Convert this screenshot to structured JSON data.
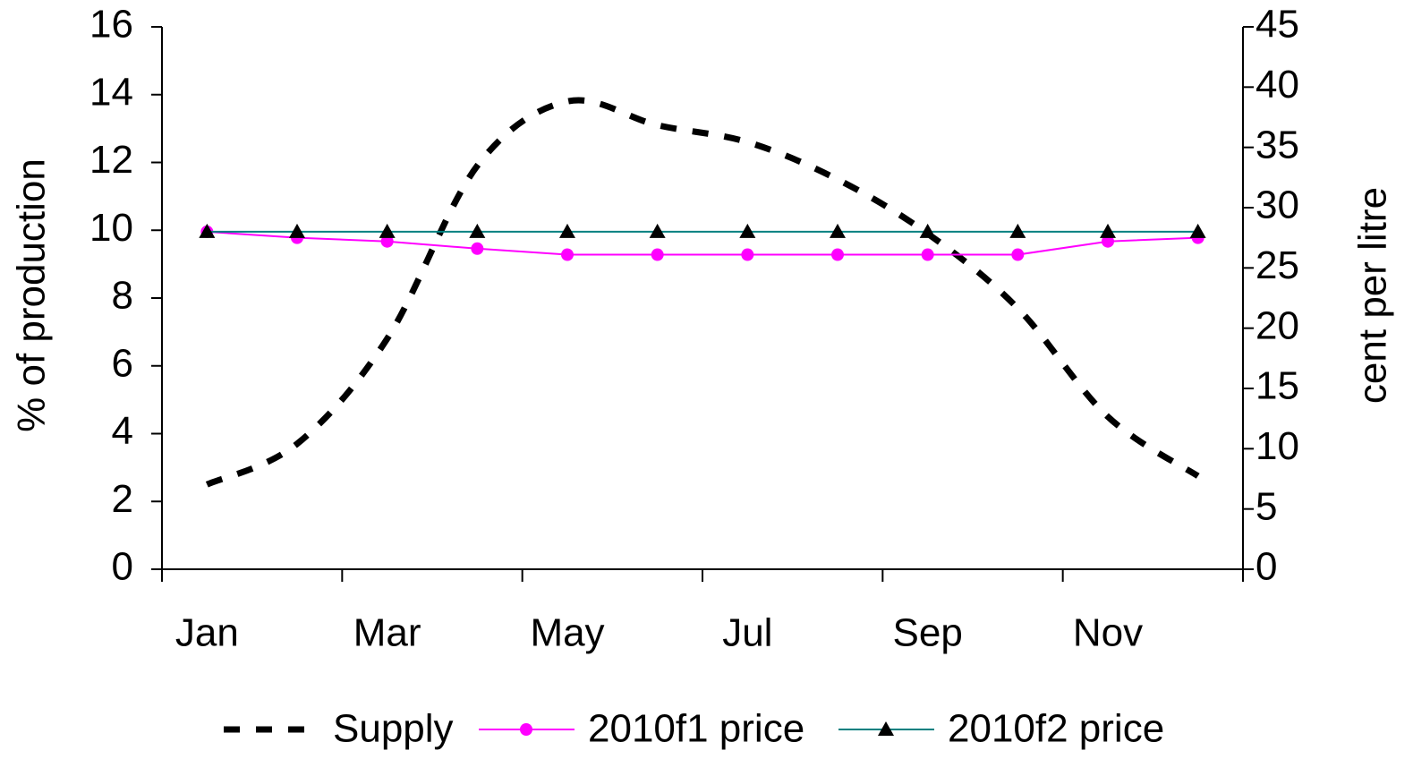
{
  "chart_data": {
    "type": "line",
    "categories": [
      "Jan",
      null,
      "Mar",
      null,
      "May",
      null,
      "Jul",
      null,
      "Sep",
      null,
      "Nov",
      null
    ],
    "y_label": "% of production",
    "y2_label": "cent per litre",
    "ylim": [
      0,
      16
    ],
    "yticks": [
      0,
      2,
      4,
      6,
      8,
      10,
      12,
      14,
      16
    ],
    "y2lim": [
      0,
      45
    ],
    "y2ticks": [
      0,
      5,
      10,
      15,
      20,
      25,
      30,
      35,
      40,
      45
    ],
    "grid": false,
    "legend": "bottom",
    "series": [
      {
        "name": "Supply",
        "color": "#000000",
        "line_style": "dashed",
        "axis": "y",
        "values": [
          2.5,
          3.7,
          6.8,
          11.9,
          13.8,
          13.1,
          12.6,
          11.5,
          9.9,
          7.7,
          4.5,
          2.75
        ]
      },
      {
        "name": "2010f1 price",
        "color": "#ff00ff",
        "marker": "circle",
        "axis": "y2",
        "values": [
          28.0,
          27.5,
          27.2,
          26.6,
          26.1,
          26.1,
          26.1,
          26.1,
          26.1,
          26.1,
          27.2,
          27.5
        ]
      },
      {
        "name": "2010f2 price",
        "color": "#008080",
        "marker": "triangle",
        "marker_color": "#000000",
        "axis": "y2",
        "values": [
          28.0,
          28.0,
          28.0,
          28.0,
          28.0,
          28.0,
          28.0,
          28.0,
          28.0,
          28.0,
          28.0,
          28.0
        ]
      }
    ]
  }
}
